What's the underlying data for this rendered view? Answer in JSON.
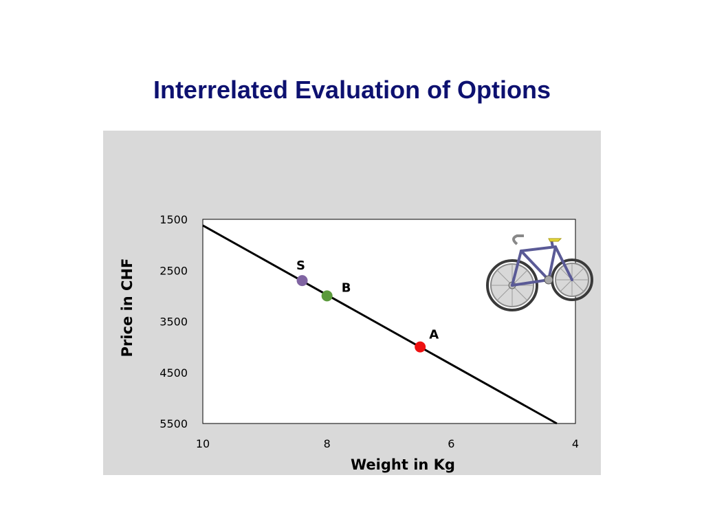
{
  "slide": {
    "title": "Interrelated Evaluation of Options"
  },
  "chart_data": {
    "type": "scatter",
    "title": "",
    "xlabel": "Weight in Kg",
    "ylabel": "Price in CHF",
    "xlim": [
      10,
      4
    ],
    "ylim": [
      1500,
      5500
    ],
    "x_reversed": true,
    "y_reversed": true,
    "x_ticks": [
      10,
      8,
      6,
      4
    ],
    "x_tick_labels": [
      "10",
      "8",
      "6",
      "4"
    ],
    "y_ticks": [
      1500,
      2500,
      3500,
      4500,
      5500
    ],
    "y_tick_labels": [
      "1500",
      "2500",
      "3500",
      "4500",
      "5500"
    ],
    "grid": false,
    "legend": "none",
    "line": {
      "x": [
        10,
        4.3
      ],
      "y": [
        1620,
        5500
      ],
      "color": "#000000"
    },
    "points": [
      {
        "label": "S",
        "x": 8.4,
        "y": 2700,
        "color": "#8064a2"
      },
      {
        "label": "B",
        "x": 8.0,
        "y": 3000,
        "color": "#5b9a3c"
      },
      {
        "label": "A",
        "x": 6.5,
        "y": 4000,
        "color": "#ee1111"
      }
    ],
    "image": "bicycle-illustration"
  }
}
